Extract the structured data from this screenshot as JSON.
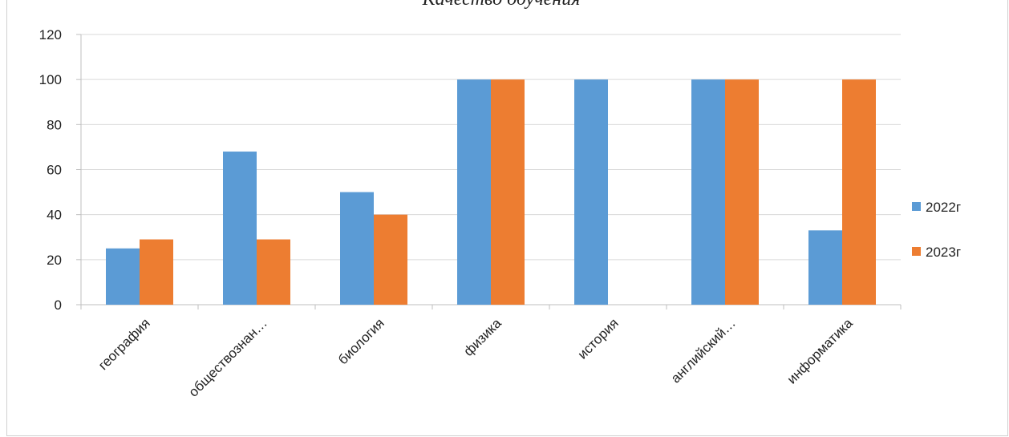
{
  "chart_data": {
    "type": "bar",
    "title": "Качество обучения",
    "categories": [
      "география",
      "обществознан…",
      "биология",
      "физика",
      "история",
      "английский…",
      "информатика"
    ],
    "series": [
      {
        "name": "2022г",
        "values": [
          25,
          68,
          50,
          100,
          100,
          100,
          33
        ],
        "color": "#5B9BD5"
      },
      {
        "name": "2023г",
        "values": [
          29,
          29,
          40,
          100,
          0,
          100,
          100
        ],
        "color": "#ED7D31"
      }
    ],
    "y_ticks": [
      "0",
      "20",
      "40",
      "60",
      "80",
      "100",
      "120"
    ],
    "ylim": [
      0,
      120
    ],
    "grid": true,
    "legend_position": "right"
  }
}
